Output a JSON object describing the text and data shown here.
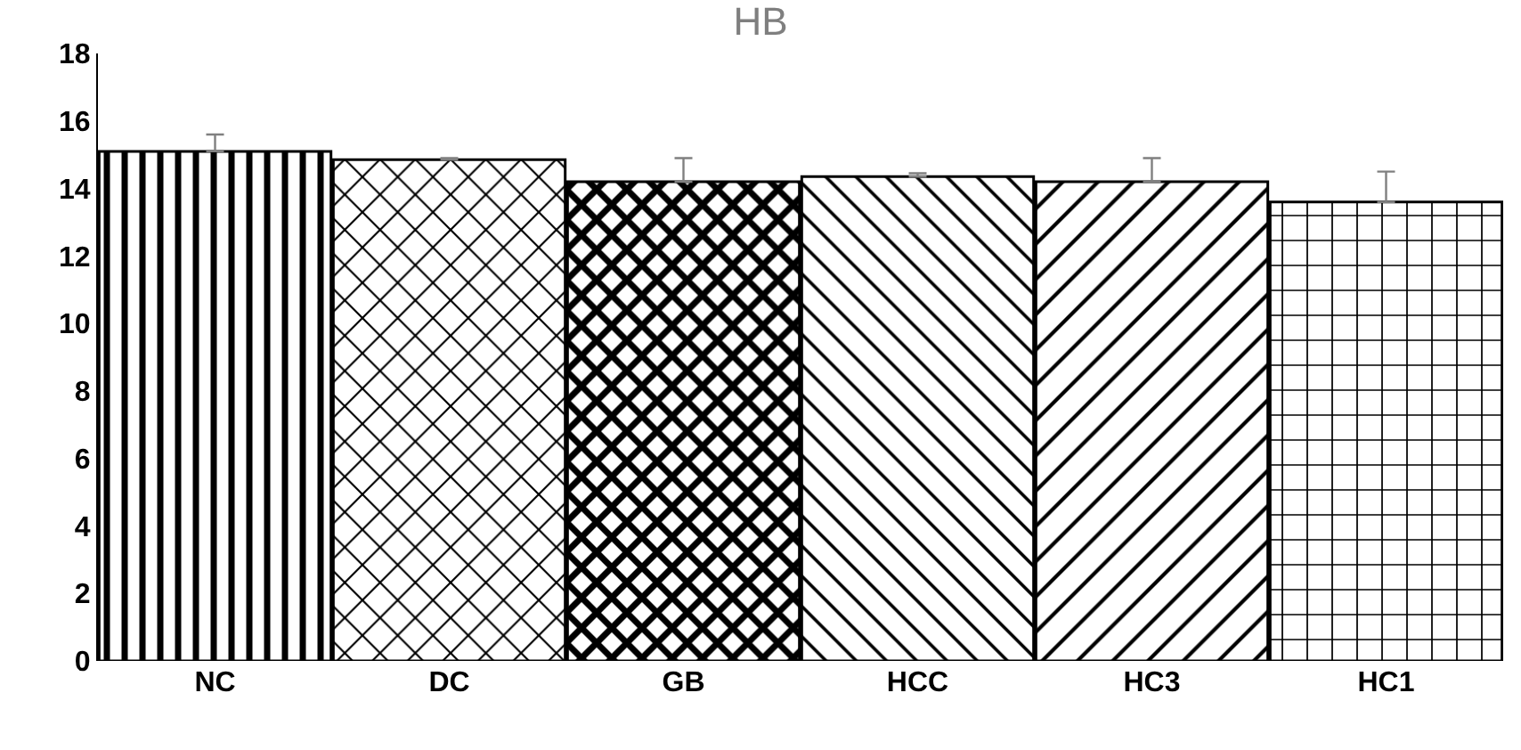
{
  "chart_data": {
    "type": "bar",
    "title": "HB",
    "categories": [
      "NC",
      "DC",
      "GB",
      "HCC",
      "HC3",
      "HC1"
    ],
    "values": [
      15.1,
      14.85,
      14.2,
      14.35,
      14.2,
      13.6
    ],
    "errors": [
      [
        15.1,
        15.6
      ],
      [
        14.85,
        14.9
      ],
      [
        14.2,
        14.9
      ],
      [
        14.35,
        14.45
      ],
      [
        14.2,
        14.9
      ],
      [
        13.6,
        14.5
      ]
    ],
    "color": "#000000",
    "ylim": [
      0,
      18
    ],
    "yticks": [
      0,
      2,
      4,
      6,
      8,
      10,
      12,
      14,
      16,
      18
    ],
    "legend": false
  }
}
